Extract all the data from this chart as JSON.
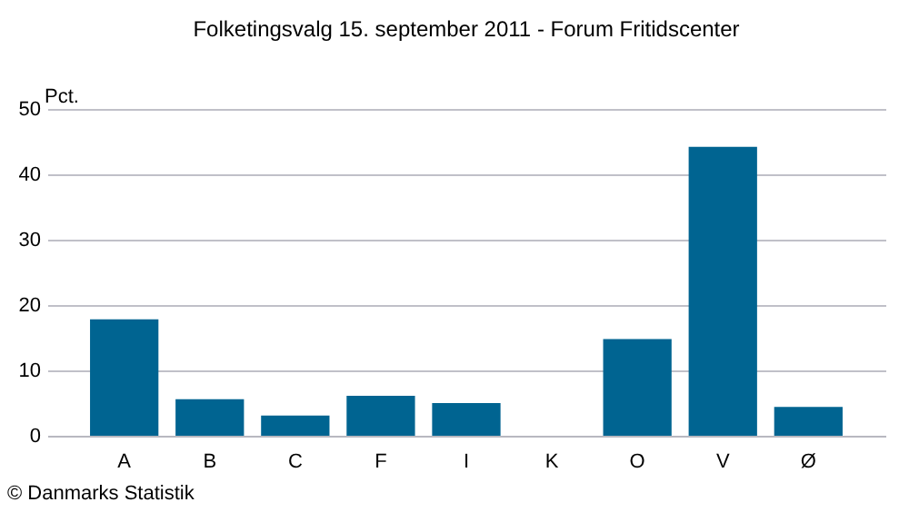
{
  "chart_data": {
    "type": "bar",
    "title": "Folketingsvalg 15. september 2011 - Forum Fritidscenter",
    "ylabel": "Pct.",
    "categories": [
      "A",
      "B",
      "C",
      "F",
      "I",
      "K",
      "O",
      "V",
      "Ø"
    ],
    "values": [
      17.8,
      5.6,
      3.1,
      6.1,
      5.0,
      0,
      14.8,
      44.2,
      4.4
    ],
    "color": "#006491",
    "ylim": [
      0,
      50
    ],
    "yticks": [
      0,
      10,
      20,
      30,
      40,
      50
    ],
    "grid": "y",
    "annotations": [
      "© Danmarks Statistik"
    ]
  }
}
